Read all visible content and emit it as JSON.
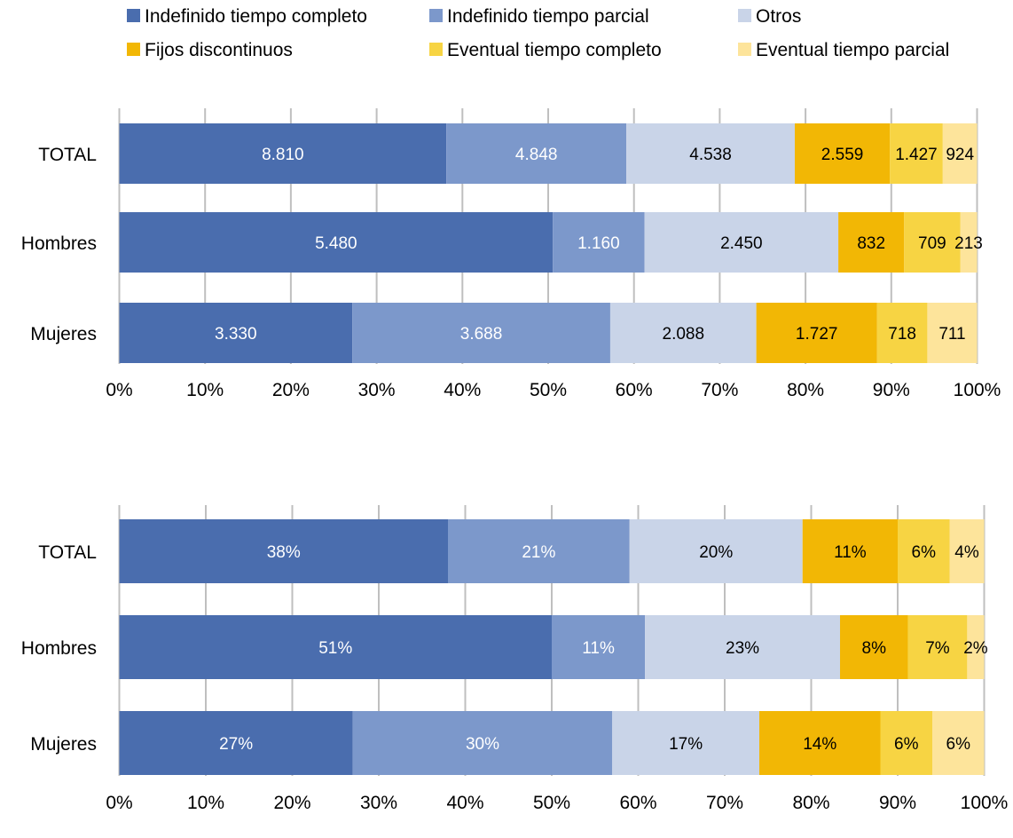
{
  "legend": {
    "placement": "top",
    "items": [
      {
        "label": "Indefinido tiempo completo",
        "color": "#4A6DAE"
      },
      {
        "label": "Indefinido tiempo parcial",
        "color": "#7C98CB"
      },
      {
        "label": "Otros",
        "color": "#C9D4E8"
      },
      {
        "label": "Fijos discontinuos",
        "color": "#F2B705"
      },
      {
        "label": "Eventual tiempo completo",
        "color": "#F7D443"
      },
      {
        "label": "Eventual tiempo parcial",
        "color": "#FDE49B"
      }
    ]
  },
  "chart_data": [
    {
      "type": "bar",
      "orientation": "horizontal",
      "stacked": "percent",
      "categories": [
        "TOTAL",
        "Hombres",
        "Mujeres"
      ],
      "series": [
        {
          "name": "Indefinido tiempo completo",
          "values": [
            8810,
            5480,
            3330
          ],
          "labels": [
            "8.810",
            "5.480",
            "3.330"
          ],
          "color": "#4A6DAE",
          "label_color": "#ffffff"
        },
        {
          "name": "Indefinido tiempo parcial",
          "values": [
            4848,
            1160,
            3688
          ],
          "labels": [
            "4.848",
            "1.160",
            "3.688"
          ],
          "color": "#7C98CB",
          "label_color": "#ffffff"
        },
        {
          "name": "Otros",
          "values": [
            4538,
            2450,
            2088
          ],
          "labels": [
            "4.538",
            "2.450",
            "2.088"
          ],
          "color": "#C9D4E8",
          "label_color": "#000000"
        },
        {
          "name": "Fijos discontinuos",
          "values": [
            2559,
            832,
            1727
          ],
          "labels": [
            "2.559",
            "832",
            "1.727"
          ],
          "color": "#F2B705",
          "label_color": "#000000"
        },
        {
          "name": "Eventual tiempo completo",
          "values": [
            1427,
            709,
            718
          ],
          "labels": [
            "1.427",
            "709",
            "718"
          ],
          "color": "#F7D443",
          "label_color": "#000000"
        },
        {
          "name": "Eventual tiempo parcial",
          "values": [
            924,
            213,
            711
          ],
          "labels": [
            "924",
            "213",
            "711"
          ],
          "color": "#FDE49B",
          "label_color": "#000000"
        }
      ],
      "x_ticks": [
        "0%",
        "10%",
        "20%",
        "30%",
        "40%",
        "50%",
        "60%",
        "70%",
        "80%",
        "90%",
        "100%"
      ],
      "xlim": [
        0,
        100
      ],
      "grid": "vertical"
    },
    {
      "type": "bar",
      "orientation": "horizontal",
      "stacked": "percent",
      "categories": [
        "TOTAL",
        "Hombres",
        "Mujeres"
      ],
      "series": [
        {
          "name": "Indefinido tiempo completo",
          "values": [
            38,
            51,
            27
          ],
          "labels": [
            "38%",
            "51%",
            "27%"
          ],
          "color": "#4A6DAE",
          "label_color": "#ffffff"
        },
        {
          "name": "Indefinido tiempo parcial",
          "values": [
            21,
            11,
            30
          ],
          "labels": [
            "21%",
            "11%",
            "30%"
          ],
          "color": "#7C98CB",
          "label_color": "#ffffff"
        },
        {
          "name": "Otros",
          "values": [
            20,
            23,
            17
          ],
          "labels": [
            "20%",
            "23%",
            "17%"
          ],
          "color": "#C9D4E8",
          "label_color": "#000000"
        },
        {
          "name": "Fijos discontinuos",
          "values": [
            11,
            8,
            14
          ],
          "labels": [
            "11%",
            "8%",
            "14%"
          ],
          "color": "#F2B705",
          "label_color": "#000000"
        },
        {
          "name": "Eventual tiempo completo",
          "values": [
            6,
            7,
            6
          ],
          "labels": [
            "6%",
            "7%",
            "6%"
          ],
          "color": "#F7D443",
          "label_color": "#000000"
        },
        {
          "name": "Eventual tiempo parcial",
          "values": [
            4,
            2,
            6
          ],
          "labels": [
            "4%",
            "2%",
            "6%"
          ],
          "color": "#FDE49B",
          "label_color": "#000000"
        }
      ],
      "x_ticks": [
        "0%",
        "10%",
        "20%",
        "30%",
        "40%",
        "50%",
        "60%",
        "70%",
        "80%",
        "90%",
        "100%"
      ],
      "xlim": [
        0,
        100
      ],
      "grid": "vertical"
    }
  ]
}
